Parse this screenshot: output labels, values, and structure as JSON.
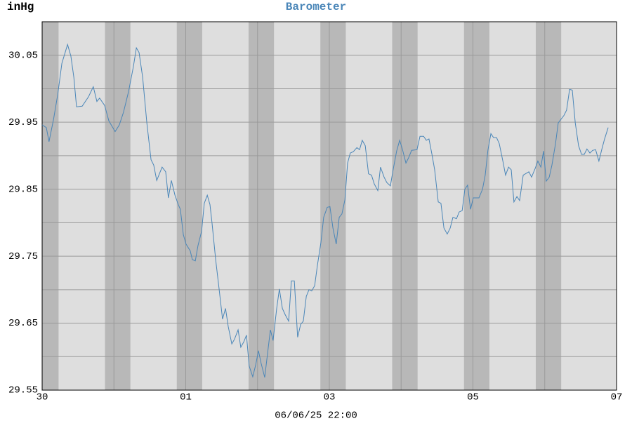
{
  "chart_data": {
    "type": "line",
    "title": "Barometer",
    "y_label": "inHg",
    "x_label": "06/06/25 22:00",
    "xlim": [
      0,
      192
    ],
    "xticks": [
      {
        "value": 0,
        "label": "30"
      },
      {
        "value": 48,
        "label": "01"
      },
      {
        "value": 96,
        "label": "03"
      },
      {
        "value": 144,
        "label": "05"
      },
      {
        "value": 192,
        "label": "07"
      }
    ],
    "minor_xticks": [
      24,
      72,
      120,
      168
    ],
    "ylim": [
      29.55,
      30.1
    ],
    "yticks": [
      29.55,
      29.65,
      29.75,
      29.85,
      29.95,
      30.05
    ],
    "minor_yticks": [
      29.6,
      29.7,
      29.8,
      29.9,
      30.0,
      30.1
    ],
    "grid": true,
    "night_bands": [
      [
        0,
        5.5
      ],
      [
        21,
        29.5
      ],
      [
        45,
        53.5
      ],
      [
        69,
        77.5
      ],
      [
        93,
        101.5
      ],
      [
        117,
        125.5
      ],
      [
        141,
        149.5
      ],
      [
        165,
        173.5
      ]
    ],
    "x": [
      0,
      1.4,
      2.3,
      3.8,
      5.2,
      6.6,
      8.5,
      9.6,
      10.6,
      11.5,
      13.4,
      15.5,
      17.1,
      18.3,
      19.2,
      20.9,
      22.3,
      24.4,
      25.8,
      27.2,
      28.9,
      30.5,
      31.5,
      32.4,
      33.6,
      35.0,
      36.4,
      37.3,
      38.3,
      40.1,
      41.3,
      42.2,
      43.2,
      44.4,
      45.5,
      46.2,
      47.2,
      48.1,
      49.5,
      50.2,
      51.2,
      52.1,
      53.3,
      54.2,
      55.2,
      56.1,
      56.8,
      58.0,
      59.1,
      60.3,
      61.3,
      62.2,
      63.4,
      64.3,
      65.5,
      66.4,
      67.4,
      68.3,
      69.2,
      70.4,
      71.4,
      72.3,
      73.2,
      74.4,
      75.3,
      76.3,
      77.2,
      78.4,
      79.3,
      80.3,
      81.2,
      82.4,
      83.3,
      84.3,
      85.4,
      86.4,
      87.3,
      88.3,
      89.2,
      90.1,
      91.1,
      92.0,
      93.2,
      94.1,
      95.3,
      96.2,
      97.2,
      98.3,
      99.3,
      100.2,
      101.2,
      102.1,
      103.0,
      104.0,
      105.2,
      106.1,
      107.0,
      108.0,
      109.1,
      110.1,
      111.0,
      112.2,
      113.1,
      114.3,
      115.2,
      116.4,
      117.4,
      118.5,
      119.5,
      120.4,
      121.6,
      122.5,
      123.5,
      125.3,
      126.3,
      127.5,
      128.4,
      129.3,
      130.3,
      131.2,
      132.4,
      133.3,
      134.3,
      135.4,
      136.4,
      137.3,
      138.5,
      139.4,
      140.4,
      141.3,
      142.2,
      143.2,
      144.1,
      146.0,
      147.2,
      148.1,
      149.0,
      150.0,
      150.9,
      151.9,
      152.8,
      154.0,
      154.9,
      155.9,
      156.8,
      157.7,
      158.7,
      159.6,
      160.8,
      162.7,
      163.6,
      164.8,
      165.7,
      166.7,
      167.6,
      168.5,
      169.5,
      170.4,
      171.6,
      172.5,
      174.4,
      175.3,
      176.3,
      177.2,
      178.2,
      179.3,
      180.3,
      181.2,
      182.1,
      183.1,
      184.0,
      185.0,
      186.1,
      187.1,
      188.0,
      189.2
    ],
    "series": [
      {
        "name": "Barometer",
        "color": "#4a86b8",
        "values": [
          29.946,
          29.942,
          29.921,
          29.954,
          29.991,
          30.038,
          30.066,
          30.049,
          30.017,
          29.973,
          29.974,
          29.988,
          30.003,
          29.981,
          29.986,
          29.975,
          29.952,
          29.936,
          29.946,
          29.965,
          29.996,
          30.033,
          30.061,
          30.054,
          30.017,
          29.949,
          29.894,
          29.886,
          29.863,
          29.883,
          29.876,
          29.837,
          29.863,
          29.841,
          29.827,
          29.82,
          29.782,
          29.768,
          29.758,
          29.745,
          29.743,
          29.766,
          29.787,
          29.829,
          29.841,
          29.827,
          29.799,
          29.745,
          29.703,
          29.656,
          29.672,
          29.645,
          29.619,
          29.626,
          29.64,
          29.614,
          29.622,
          29.632,
          29.586,
          29.57,
          29.588,
          29.609,
          29.59,
          29.569,
          29.603,
          29.64,
          29.624,
          29.672,
          29.701,
          29.672,
          29.663,
          29.653,
          29.713,
          29.713,
          29.629,
          29.648,
          29.653,
          29.69,
          29.7,
          29.698,
          29.706,
          29.736,
          29.771,
          29.808,
          29.823,
          29.824,
          29.792,
          29.768,
          29.808,
          29.813,
          29.834,
          29.889,
          29.904,
          29.906,
          29.912,
          29.909,
          29.923,
          29.915,
          29.873,
          29.871,
          29.858,
          29.848,
          29.883,
          29.868,
          29.86,
          29.855,
          29.881,
          29.907,
          29.923,
          29.91,
          29.889,
          29.897,
          29.908,
          29.909,
          29.929,
          29.929,
          29.923,
          29.925,
          29.902,
          29.879,
          29.831,
          29.829,
          29.792,
          29.783,
          29.792,
          29.808,
          29.806,
          29.816,
          29.818,
          29.85,
          29.856,
          29.82,
          29.837,
          29.837,
          29.85,
          29.871,
          29.908,
          29.933,
          29.927,
          29.927,
          29.918,
          29.892,
          29.871,
          29.883,
          29.879,
          29.831,
          29.839,
          29.833,
          29.871,
          29.876,
          29.868,
          29.881,
          29.892,
          29.883,
          29.907,
          29.862,
          29.868,
          29.886,
          29.918,
          29.949,
          29.96,
          29.968,
          29.999,
          29.998,
          29.949,
          29.915,
          29.902,
          29.902,
          29.91,
          29.904,
          29.908,
          29.909,
          29.892,
          29.91,
          29.925,
          29.942
        ]
      }
    ]
  }
}
